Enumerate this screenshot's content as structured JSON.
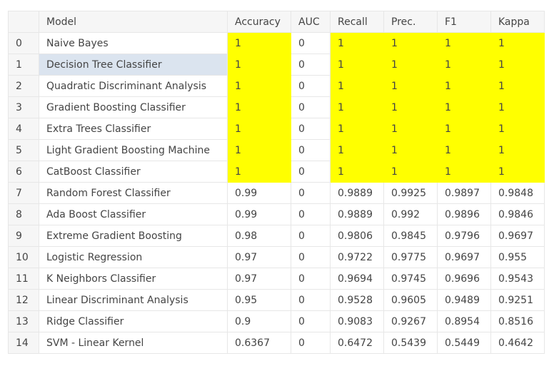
{
  "table": {
    "columns": [
      "",
      "Model",
      "Accuracy",
      "AUC",
      "Recall",
      "Prec.",
      "F1",
      "Kappa"
    ],
    "highlight_color": "#ffff00",
    "selected_row_color": "#dbe4ef",
    "selected_row": 1,
    "rows": [
      {
        "idx": "0",
        "model": "Naive Bayes",
        "accuracy": "1",
        "auc": "0",
        "recall": "1",
        "prec": "1",
        "f1": "1",
        "kappa": "1",
        "best": true
      },
      {
        "idx": "1",
        "model": "Decision Tree Classifier",
        "accuracy": "1",
        "auc": "0",
        "recall": "1",
        "prec": "1",
        "f1": "1",
        "kappa": "1",
        "best": true
      },
      {
        "idx": "2",
        "model": "Quadratic Discriminant Analysis",
        "accuracy": "1",
        "auc": "0",
        "recall": "1",
        "prec": "1",
        "f1": "1",
        "kappa": "1",
        "best": true
      },
      {
        "idx": "3",
        "model": "Gradient Boosting Classifier",
        "accuracy": "1",
        "auc": "0",
        "recall": "1",
        "prec": "1",
        "f1": "1",
        "kappa": "1",
        "best": true
      },
      {
        "idx": "4",
        "model": "Extra Trees Classifier",
        "accuracy": "1",
        "auc": "0",
        "recall": "1",
        "prec": "1",
        "f1": "1",
        "kappa": "1",
        "best": true
      },
      {
        "idx": "5",
        "model": "Light Gradient Boosting Machine",
        "accuracy": "1",
        "auc": "0",
        "recall": "1",
        "prec": "1",
        "f1": "1",
        "kappa": "1",
        "best": true
      },
      {
        "idx": "6",
        "model": "CatBoost Classifier",
        "accuracy": "1",
        "auc": "0",
        "recall": "1",
        "prec": "1",
        "f1": "1",
        "kappa": "1",
        "best": true
      },
      {
        "idx": "7",
        "model": "Random Forest Classifier",
        "accuracy": "0.99",
        "auc": "0",
        "recall": "0.9889",
        "prec": "0.9925",
        "f1": "0.9897",
        "kappa": "0.9848",
        "best": false
      },
      {
        "idx": "8",
        "model": "Ada Boost Classifier",
        "accuracy": "0.99",
        "auc": "0",
        "recall": "0.9889",
        "prec": "0.992",
        "f1": "0.9896",
        "kappa": "0.9846",
        "best": false
      },
      {
        "idx": "9",
        "model": "Extreme Gradient Boosting",
        "accuracy": "0.98",
        "auc": "0",
        "recall": "0.9806",
        "prec": "0.9845",
        "f1": "0.9796",
        "kappa": "0.9697",
        "best": false
      },
      {
        "idx": "10",
        "model": "Logistic Regression",
        "accuracy": "0.97",
        "auc": "0",
        "recall": "0.9722",
        "prec": "0.9775",
        "f1": "0.9697",
        "kappa": "0.955",
        "best": false
      },
      {
        "idx": "11",
        "model": "K Neighbors Classifier",
        "accuracy": "0.97",
        "auc": "0",
        "recall": "0.9694",
        "prec": "0.9745",
        "f1": "0.9696",
        "kappa": "0.9543",
        "best": false
      },
      {
        "idx": "12",
        "model": "Linear Discriminant Analysis",
        "accuracy": "0.95",
        "auc": "0",
        "recall": "0.9528",
        "prec": "0.9605",
        "f1": "0.9489",
        "kappa": "0.9251",
        "best": false
      },
      {
        "idx": "13",
        "model": "Ridge Classifier",
        "accuracy": "0.9",
        "auc": "0",
        "recall": "0.9083",
        "prec": "0.9267",
        "f1": "0.8954",
        "kappa": "0.8516",
        "best": false
      },
      {
        "idx": "14",
        "model": "SVM - Linear Kernel",
        "accuracy": "0.6367",
        "auc": "0",
        "recall": "0.6472",
        "prec": "0.5439",
        "f1": "0.5449",
        "kappa": "0.4642",
        "best": false
      }
    ]
  }
}
